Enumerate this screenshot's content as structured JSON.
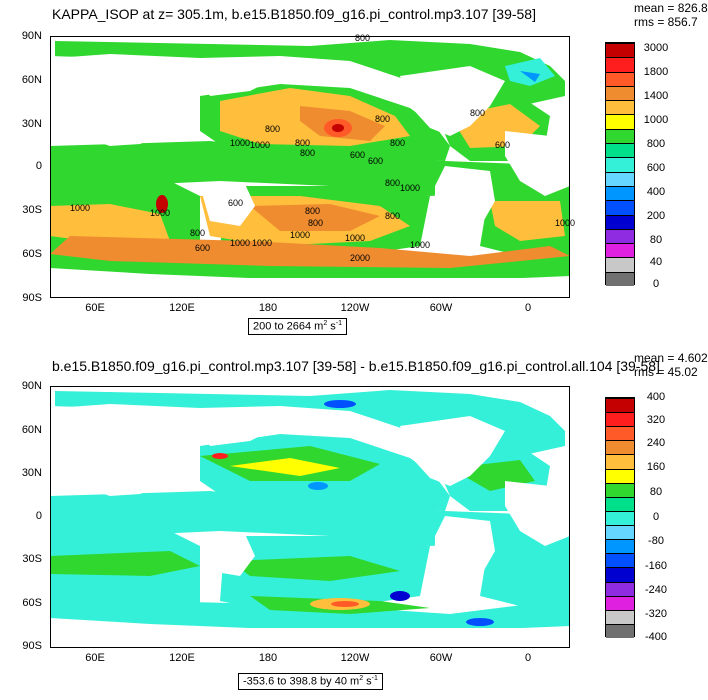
{
  "panel1": {
    "title": "KAPPA_ISOP at z= 305.1m, b.e15.B1850.f09_g16.pi_control.mp3.107 [39-58]",
    "mean": "mean = 826.8",
    "rms": "rms = 856.7",
    "range_prefix": "200 to 2664 m",
    "range_sup": "2",
    "range_unit": " s",
    "range_sup2": "-1",
    "lat_ticks": [
      "90N",
      "60N",
      "30N",
      "0",
      "30S",
      "60S",
      "90S"
    ],
    "lon_ticks": [
      "60E",
      "120E",
      "180",
      "120W",
      "60W",
      "0"
    ],
    "contour_labels": [
      "800",
      "800",
      "1000",
      "800",
      "800",
      "800",
      "800",
      "1000",
      "600",
      "600",
      "800",
      "600",
      "800",
      "1000",
      "600",
      "1000",
      "800",
      "1000",
      "800",
      "1000",
      "800",
      "1000",
      "1000",
      "2000",
      "600",
      "1000",
      "1000",
      "1000",
      "800"
    ],
    "colorbar": {
      "labels": [
        "3000",
        "1800",
        "1400",
        "1000",
        "800",
        "600",
        "400",
        "200",
        "80",
        "40",
        "0"
      ],
      "colors": [
        "#c40000",
        "#ff1e1e",
        "#ff5a28",
        "#f08c30",
        "#ffbf3c",
        "#ffff00",
        "#2fd72f",
        "#00e08a",
        "#35f0d8",
        "#64d6ff",
        "#0096ff",
        "#0050ff",
        "#0000d0",
        "#8f2be0",
        "#e020e0",
        "#c8c8c8",
        "#707070"
      ]
    }
  },
  "panel2": {
    "title": "b.e15.B1850.f09_g16.pi_control.mp3.107 [39-58] - b.e15.B1850.f09_g16.pi_control.all.104 [39-58]",
    "mean": "mean = 4.602",
    "rms": "rms = 45.02",
    "range_prefix": "-353.6 to 398.8 by 40 m",
    "range_sup": "2",
    "range_unit": " s",
    "range_sup2": "-1",
    "lat_ticks": [
      "90N",
      "60N",
      "30N",
      "0",
      "30S",
      "60S",
      "90S"
    ],
    "lon_ticks": [
      "60E",
      "120E",
      "180",
      "120W",
      "60W",
      "0"
    ],
    "colorbar": {
      "labels": [
        "400",
        "320",
        "240",
        "160",
        "80",
        "0",
        "-80",
        "-160",
        "-240",
        "-320",
        "-400"
      ],
      "colors": [
        "#c40000",
        "#ff1e1e",
        "#ff5a28",
        "#f08c30",
        "#ffbf3c",
        "#ffff00",
        "#2fd72f",
        "#00e08a",
        "#35f0d8",
        "#64d6ff",
        "#0096ff",
        "#0050ff",
        "#0000d0",
        "#8f2be0",
        "#e020e0",
        "#c8c8c8",
        "#707070"
      ]
    }
  }
}
